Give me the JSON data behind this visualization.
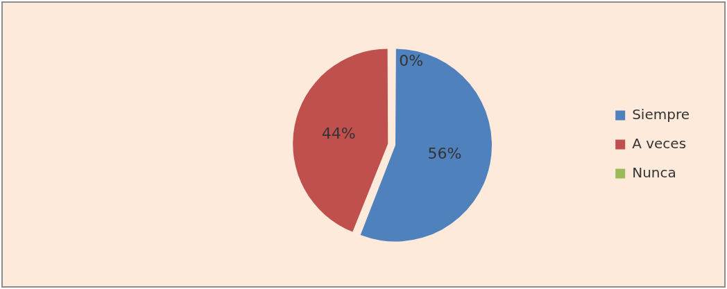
{
  "chart_data": {
    "type": "pie",
    "categories": [
      "Siempre",
      "A veces",
      "Nunca"
    ],
    "values": [
      56,
      44,
      0
    ],
    "value_labels": [
      "56%",
      "44%",
      "0%"
    ],
    "colors": [
      "#4f81bd",
      "#c0504d",
      "#9bbb59"
    ],
    "legend": "right"
  }
}
